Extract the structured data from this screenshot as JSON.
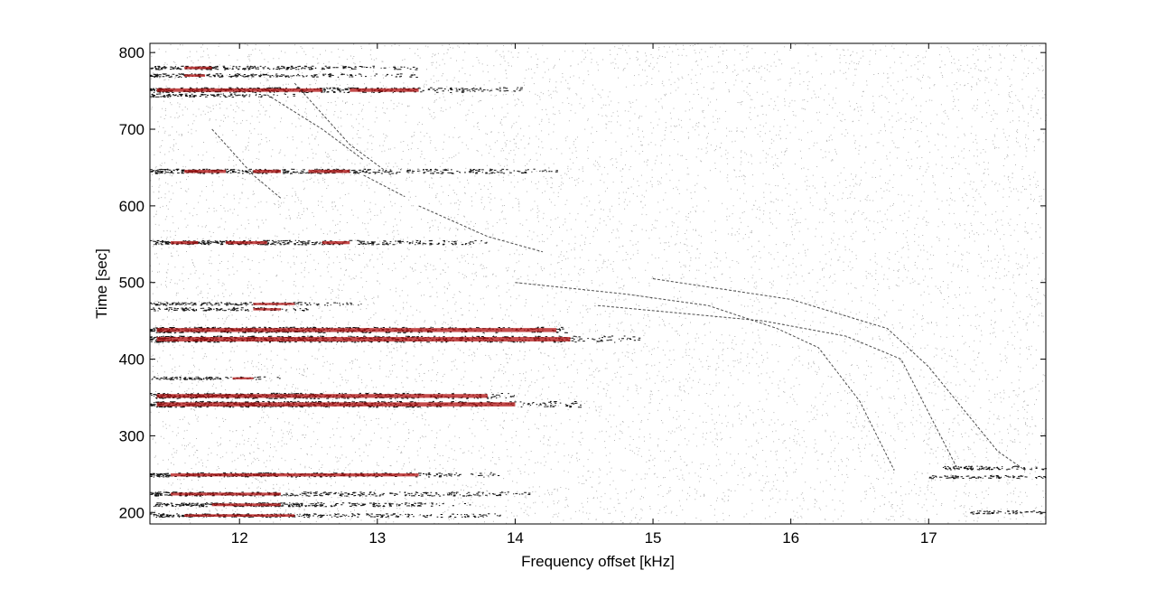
{
  "chart_data": {
    "type": "heatmap",
    "title": "",
    "xlabel": "Frequency offset [kHz]",
    "ylabel": "Time [sec]",
    "xlim": [
      11.35,
      17.85
    ],
    "ylim": [
      185,
      812
    ],
    "xticks": [
      12,
      13,
      14,
      15,
      16,
      17
    ],
    "yticks": [
      200,
      300,
      400,
      500,
      600,
      700,
      800
    ],
    "grid": false,
    "legend": "none",
    "colors": {
      "background": "#ffffff",
      "noise": "#777777",
      "band": "#111111",
      "strong": "#b01010"
    },
    "bands": [
      {
        "time": 780,
        "x_end": 13.3,
        "strength": 0.4,
        "red_segments": [
          [
            11.6,
            11.8
          ]
        ]
      },
      {
        "time": 770,
        "x_end": 13.3,
        "strength": 0.35,
        "red_segments": [
          [
            11.6,
            11.75
          ]
        ]
      },
      {
        "time": 751,
        "x_end": 14.1,
        "strength": 0.7,
        "red_segments": [
          [
            11.4,
            12.6
          ],
          [
            12.8,
            13.3
          ]
        ]
      },
      {
        "time": 744,
        "x_end": 12.4,
        "strength": 0.3,
        "red_segments": []
      },
      {
        "time": 645,
        "x_end": 14.3,
        "strength": 0.6,
        "red_segments": [
          [
            11.6,
            11.9
          ],
          [
            12.1,
            12.3
          ],
          [
            12.5,
            12.8
          ]
        ]
      },
      {
        "time": 552,
        "x_end": 13.8,
        "strength": 0.55,
        "red_segments": [
          [
            11.5,
            11.7
          ],
          [
            11.9,
            12.2
          ],
          [
            12.6,
            12.8
          ]
        ]
      },
      {
        "time": 472,
        "x_end": 12.9,
        "strength": 0.3,
        "red_segments": [
          [
            12.1,
            12.4
          ]
        ]
      },
      {
        "time": 465,
        "x_end": 12.5,
        "strength": 0.3,
        "red_segments": [
          [
            12.1,
            12.3
          ]
        ]
      },
      {
        "time": 438,
        "x_end": 14.4,
        "strength": 0.85,
        "red_segments": [
          [
            11.4,
            14.3
          ]
        ]
      },
      {
        "time": 426,
        "x_end": 14.9,
        "strength": 1.0,
        "red_segments": [
          [
            11.4,
            14.4
          ]
        ]
      },
      {
        "time": 375,
        "x_end": 12.3,
        "strength": 0.25,
        "red_segments": [
          [
            11.95,
            12.1
          ]
        ]
      },
      {
        "time": 352,
        "x_end": 14.0,
        "strength": 0.8,
        "red_segments": [
          [
            11.4,
            13.8
          ]
        ]
      },
      {
        "time": 341,
        "x_end": 14.5,
        "strength": 0.9,
        "red_segments": [
          [
            11.4,
            14.0
          ]
        ]
      },
      {
        "time": 249,
        "x_end": 13.9,
        "strength": 0.55,
        "red_segments": [
          [
            11.5,
            13.3
          ]
        ]
      },
      {
        "time": 224,
        "x_end": 14.1,
        "strength": 0.5,
        "red_segments": [
          [
            11.5,
            12.3
          ]
        ]
      },
      {
        "time": 210,
        "x_end": 13.7,
        "strength": 0.45,
        "red_segments": [
          [
            11.8,
            12.3
          ]
        ]
      },
      {
        "time": 196,
        "x_end": 13.9,
        "strength": 0.4,
        "red_segments": [
          [
            11.6,
            12.4
          ]
        ]
      },
      {
        "time": 258,
        "x_start": 17.1,
        "x_end": 17.85,
        "strength": 0.4,
        "red_segments": []
      },
      {
        "time": 246,
        "x_start": 17.0,
        "x_end": 17.85,
        "strength": 0.3,
        "red_segments": []
      },
      {
        "time": 200,
        "x_start": 17.3,
        "x_end": 17.85,
        "strength": 0.3,
        "red_segments": []
      }
    ],
    "tracks": [
      {
        "points": [
          [
            14.0,
            500
          ],
          [
            14.8,
            485
          ],
          [
            15.4,
            470
          ],
          [
            15.9,
            440
          ],
          [
            16.2,
            415
          ],
          [
            16.5,
            345
          ],
          [
            16.75,
            255
          ]
        ]
      },
      {
        "points": [
          [
            14.6,
            470
          ],
          [
            15.2,
            460
          ],
          [
            15.8,
            450
          ],
          [
            16.4,
            430
          ],
          [
            16.8,
            400
          ],
          [
            17.2,
            260
          ]
        ]
      },
      {
        "points": [
          [
            15.0,
            505
          ],
          [
            16.0,
            478
          ],
          [
            16.7,
            440
          ],
          [
            17.0,
            390
          ],
          [
            17.5,
            280
          ],
          [
            17.7,
            255
          ]
        ]
      },
      {
        "points": [
          [
            12.4,
            760
          ],
          [
            12.8,
            680
          ],
          [
            13.1,
            640
          ]
        ]
      },
      {
        "points": [
          [
            11.8,
            700
          ],
          [
            12.1,
            640
          ],
          [
            12.3,
            610
          ]
        ]
      },
      {
        "points": [
          [
            12.9,
            640
          ],
          [
            13.2,
            612
          ]
        ]
      },
      {
        "points": [
          [
            13.3,
            600
          ],
          [
            13.8,
            560
          ],
          [
            14.2,
            540
          ]
        ]
      },
      {
        "points": [
          [
            12.2,
            745
          ],
          [
            12.6,
            700
          ],
          [
            12.9,
            660
          ]
        ]
      }
    ]
  }
}
